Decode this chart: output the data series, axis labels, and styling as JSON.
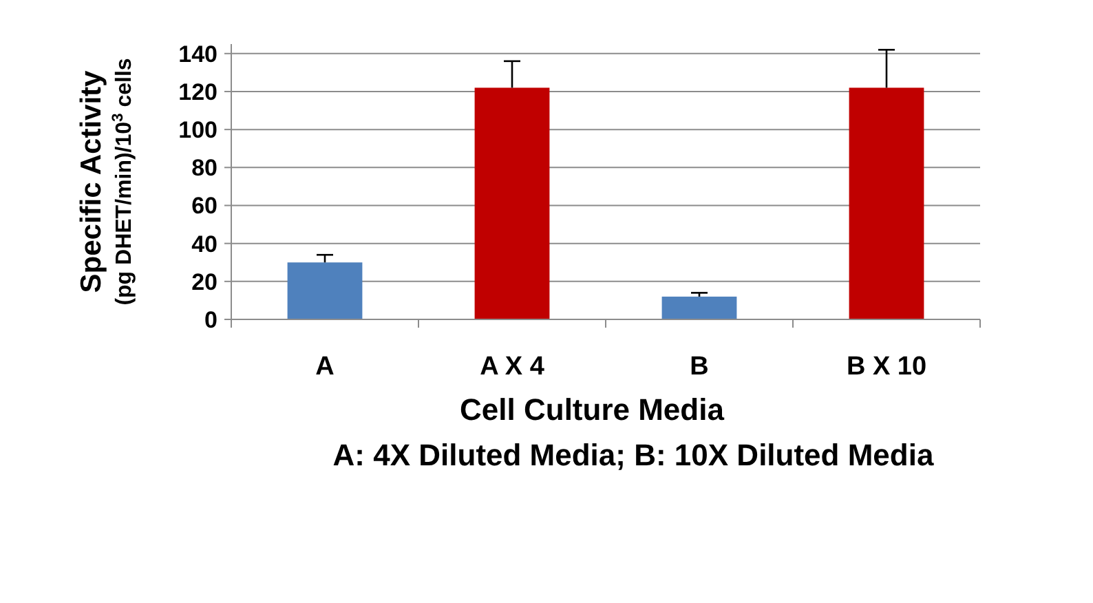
{
  "chart_data": {
    "type": "bar",
    "ylabel": "Specific Activity\n(pg DHET/min)/10$^{3}$ cells",
    "xlabel": "Cell Culture Media",
    "annotations": [
      "A:  4X Diluted Media;  B: 10X Diluted Media"
    ],
    "categories": [
      "A",
      "A X 4",
      "B",
      "B X 10"
    ],
    "values": [
      30,
      122,
      12,
      122
    ],
    "colors": [
      "#4f81bd",
      "#c00000",
      "#4f81bd",
      "#c00000"
    ],
    "errors": [
      [
        30,
        34
      ],
      [
        122,
        136
      ],
      [
        12,
        14
      ],
      [
        122,
        142
      ]
    ],
    "ylim": [
      0,
      145
    ],
    "yticks": [
      0,
      20,
      40,
      60,
      80,
      100,
      120,
      140
    ],
    "grid": "y"
  }
}
